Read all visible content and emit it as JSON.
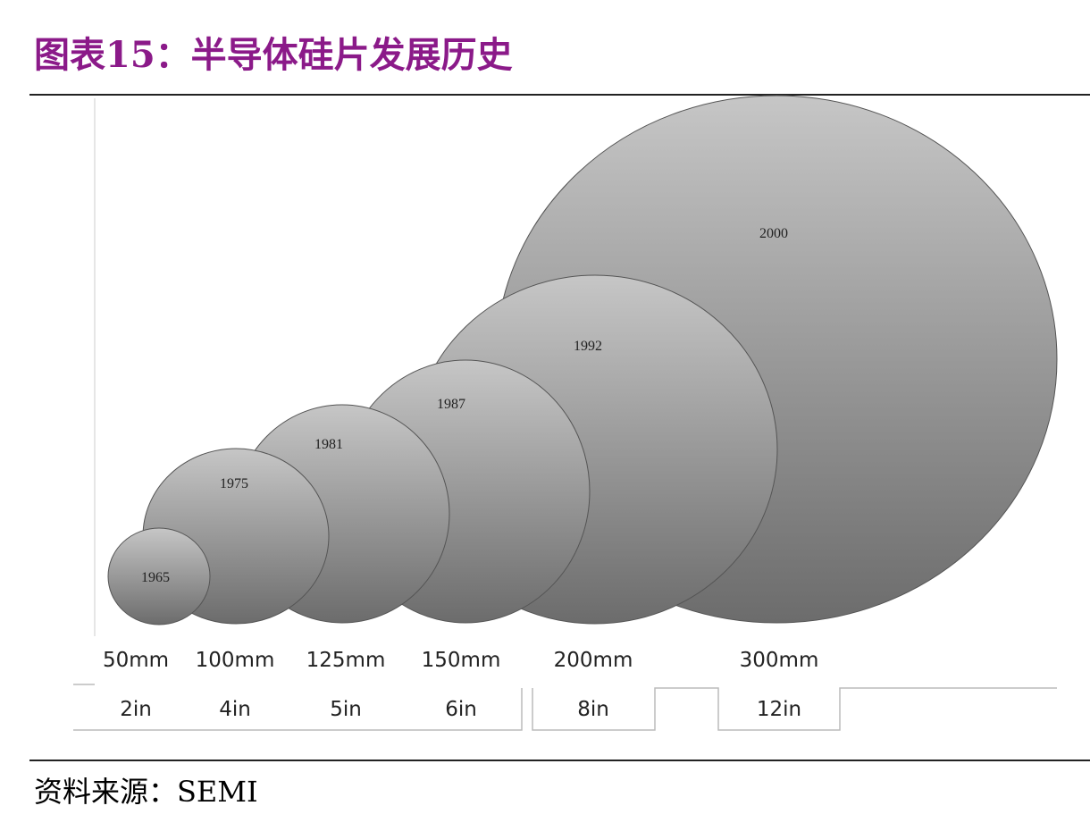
{
  "header": {
    "title": "图表15：半导体硅片发展历史"
  },
  "wafers": [
    {
      "year": "1965",
      "diameter": "50mm",
      "inches": "2in"
    },
    {
      "year": "1975",
      "diameter": "100mm",
      "inches": "4in"
    },
    {
      "year": "1981",
      "diameter": "125mm",
      "inches": "5in"
    },
    {
      "year": "1987",
      "diameter": "150mm",
      "inches": "6in"
    },
    {
      "year": "1992",
      "diameter": "200mm",
      "inches": "8in"
    },
    {
      "year": "2000",
      "diameter": "300mm",
      "inches": "12in"
    }
  ],
  "footer": {
    "source": "资料来源：SEMI"
  }
}
